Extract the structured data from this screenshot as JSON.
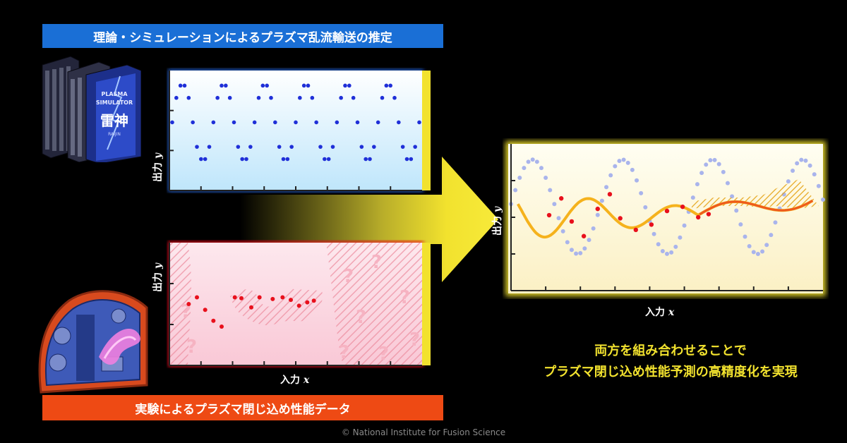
{
  "top_banner": {
    "text": "理論・シミュレーションによるプラズマ乱流輸送の推定"
  },
  "bottom_banner": {
    "text": "実験によるプラズマ閉じ込め性能データ"
  },
  "supercomputer": {
    "label_line1": "PLASMA",
    "label_line2": "SIMULATOR",
    "label_kanji": "雷神",
    "label_sub": "RAIJIN"
  },
  "plots": {
    "simulation": {
      "ylabel_text": "出力",
      "ylabel_var": "y",
      "xlabel_text": "入力",
      "xlabel_var": "x"
    },
    "experiment": {
      "ylabel_text": "出力",
      "ylabel_var": "y",
      "xlabel_text": "入力",
      "xlabel_var": "x",
      "unknown_mark": "?"
    },
    "combined": {
      "ylabel_text": "出力",
      "ylabel_var": "y",
      "xlabel_text": "入力",
      "xlabel_var": "x"
    }
  },
  "summary": {
    "line1": "両方を組み合わせることで",
    "line2": "プラズマ閉じ込め性能予測の高精度化を実現"
  },
  "copyright": "© National Institute for Fusion Science",
  "colors": {
    "blue_banner": "#1a6fd6",
    "red_banner": "#ee4a14",
    "sim_dots": "#1f2fd8",
    "exp_dots": "#e8101c",
    "prediction": "#f5b21c",
    "accent_yellow": "#f2e22e"
  },
  "chart_data": [
    {
      "type": "scatter",
      "name": "simulation",
      "x": [
        0.0,
        0.25,
        0.5,
        0.75,
        1.0,
        1.25,
        1.5,
        1.75,
        2.0,
        2.25,
        2.5,
        2.75,
        3.0,
        3.25,
        3.5,
        3.75,
        4.0,
        4.25,
        4.5,
        4.75,
        5.0,
        5.25,
        5.5,
        5.75,
        6.0,
        6.25,
        6.5,
        6.75,
        7.0,
        7.25,
        7.5,
        7.75,
        8.0,
        8.25,
        8.5,
        8.75,
        9.0,
        9.25,
        9.5,
        9.75,
        10.0,
        10.25,
        10.5,
        10.75,
        11.0,
        11.25,
        11.5,
        11.75,
        12.0,
        12.25,
        12.5,
        12.75,
        13.0,
        13.25,
        13.5,
        13.75,
        14.0,
        14.25,
        14.5,
        14.75,
        15.0
      ],
      "y": [
        0.5,
        0.8,
        0.95,
        0.95,
        0.8,
        0.5,
        0.2,
        0.05,
        0.05,
        0.2,
        0.5,
        0.8,
        0.95,
        0.95,
        0.8,
        0.5,
        0.2,
        0.05,
        0.05,
        0.2,
        0.5,
        0.8,
        0.95,
        0.95,
        0.8,
        0.5,
        0.2,
        0.05,
        0.05,
        0.2,
        0.5,
        0.8,
        0.95,
        0.95,
        0.8,
        0.5,
        0.2,
        0.05,
        0.05,
        0.2,
        0.5,
        0.8,
        0.95,
        0.95,
        0.8,
        0.5,
        0.2,
        0.05,
        0.05,
        0.2,
        0.5,
        0.8,
        0.95,
        0.95,
        0.8,
        0.5,
        0.2,
        0.05,
        0.05,
        0.2,
        0.5
      ],
      "xlim": [
        0,
        15
      ],
      "ylim": [
        -0.3,
        1.1
      ]
    },
    {
      "type": "scatter",
      "name": "experiment",
      "x": [
        1.0,
        1.5,
        2.0,
        2.5,
        3.0,
        3.8,
        4.2,
        4.8,
        5.3,
        6.1,
        6.7,
        7.2,
        7.7,
        8.2,
        8.6
      ],
      "y": [
        0.4,
        0.48,
        0.33,
        0.2,
        0.13,
        0.48,
        0.47,
        0.36,
        0.48,
        0.46,
        0.48,
        0.45,
        0.38,
        0.42,
        0.44
      ],
      "xlim": [
        0,
        15
      ],
      "ylim": [
        -0.3,
        1.1
      ]
    },
    {
      "type": "line",
      "name": "combined",
      "points_x": [
        2.2,
        2.9,
        3.5,
        4.2,
        5.0,
        5.7,
        6.3,
        7.2,
        8.1,
        9.0,
        9.9,
        10.8,
        11.4
      ],
      "points_y": [
        0.42,
        0.58,
        0.36,
        0.22,
        0.48,
        0.62,
        0.39,
        0.28,
        0.33,
        0.46,
        0.5,
        0.4,
        0.43
      ],
      "xlim": [
        0,
        18
      ],
      "ylim": [
        -0.3,
        1.1
      ]
    }
  ]
}
